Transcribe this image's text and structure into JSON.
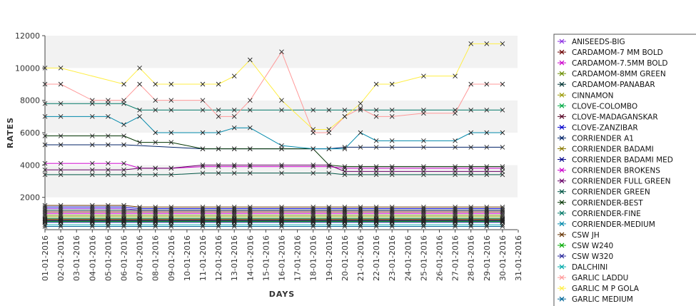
{
  "chart_data": {
    "type": "line",
    "xlabel": "DAYS",
    "ylabel": "RATES",
    "ylim": [
      0,
      12000
    ],
    "y_ticks": [
      "2000",
      "4000",
      "6000",
      "8000",
      "10000",
      "12000"
    ],
    "x": [
      "01-01-2016",
      "02-01-2016",
      "03-01-2016",
      "04-01-2016",
      "05-01-2016",
      "06-01-2016",
      "07-01-2016",
      "08-01-2016",
      "09-01-2016",
      "10-01-2016",
      "11-01-2016",
      "12-01-2016",
      "13-01-2016",
      "14-01-2016",
      "15-01-2016",
      "16-01-2016",
      "17-01-2016",
      "18-01-2016",
      "19-01-2016",
      "20-01-2016",
      "21-01-2016",
      "22-01-2016",
      "23-01-2016",
      "24-01-2016",
      "25-01-2016",
      "26-01-2016",
      "27-01-2016",
      "28-01-2016",
      "29-01-2016",
      "30-01-2016",
      "31-01-2016"
    ],
    "grid": "alternating horizontal bands",
    "legend_position": "right",
    "series": [
      {
        "name": "ANISEEDS-BIG",
        "color": "#8a2be2",
        "values": [
          1300,
          1300,
          null,
          1300,
          1300,
          1300,
          1200,
          1200,
          1200,
          null,
          1200,
          1200,
          1200,
          1200,
          null,
          1200,
          null,
          1200,
          1200,
          1200,
          1200,
          1200,
          1200,
          null,
          1200,
          null,
          1200,
          1200,
          1200,
          1200,
          null
        ]
      },
      {
        "name": "CARDAMOM-7 MM BOLD",
        "color": "#6b0000",
        "values": [
          1100,
          1100,
          null,
          1100,
          1100,
          1100,
          1100,
          1100,
          1100,
          null,
          1100,
          1100,
          1100,
          1100,
          null,
          1100,
          null,
          1100,
          1100,
          1100,
          1100,
          1100,
          1100,
          null,
          1100,
          null,
          1100,
          1100,
          1100,
          1100,
          null
        ]
      },
      {
        "name": "CARDAMOM-7.5MM BOLD",
        "color": "#cc00cc",
        "values": [
          1000,
          1000,
          null,
          1000,
          1000,
          1000,
          1000,
          1000,
          1000,
          null,
          1000,
          1000,
          1000,
          1000,
          null,
          1000,
          null,
          1000,
          1000,
          1000,
          1000,
          1000,
          1000,
          null,
          1000,
          null,
          1000,
          1000,
          1000,
          1000,
          null
        ]
      },
      {
        "name": "CARDAMOM-8MM GREEN",
        "color": "#6b8e00",
        "values": [
          900,
          900,
          null,
          900,
          900,
          900,
          900,
          900,
          900,
          null,
          900,
          900,
          900,
          900,
          null,
          900,
          null,
          900,
          900,
          900,
          900,
          900,
          900,
          null,
          900,
          null,
          900,
          900,
          900,
          900,
          null
        ]
      },
      {
        "name": "CARDAMOM-PANABAR",
        "color": "#003333",
        "values": [
          1200,
          1200,
          null,
          1200,
          1200,
          1200,
          1200,
          1200,
          1200,
          null,
          1200,
          1200,
          1200,
          1200,
          null,
          1200,
          null,
          1200,
          1200,
          1200,
          1200,
          1200,
          1200,
          null,
          1200,
          null,
          1200,
          1200,
          1200,
          1200,
          null
        ]
      },
      {
        "name": "CINNAMON",
        "color": "#999900",
        "values": [
          800,
          800,
          null,
          800,
          800,
          800,
          800,
          800,
          800,
          null,
          800,
          800,
          800,
          800,
          null,
          800,
          null,
          800,
          800,
          800,
          800,
          800,
          800,
          null,
          800,
          null,
          800,
          800,
          800,
          800,
          null
        ]
      },
      {
        "name": "CLOVE-COLOMBO",
        "color": "#00aa44",
        "values": [
          700,
          700,
          null,
          700,
          700,
          700,
          700,
          700,
          700,
          null,
          700,
          700,
          700,
          700,
          null,
          700,
          null,
          700,
          700,
          700,
          700,
          700,
          700,
          null,
          700,
          null,
          700,
          700,
          700,
          700,
          null
        ]
      },
      {
        "name": "CLOVE-MADAGANSKAR",
        "color": "#550022",
        "values": [
          650,
          650,
          null,
          650,
          650,
          650,
          650,
          650,
          650,
          null,
          650,
          650,
          650,
          650,
          null,
          650,
          null,
          650,
          650,
          650,
          650,
          650,
          650,
          null,
          650,
          null,
          650,
          650,
          650,
          650,
          null
        ]
      },
      {
        "name": "CLOVE-ZANZIBAR",
        "color": "#0000cc",
        "values": [
          1400,
          1400,
          null,
          1400,
          1400,
          1400,
          1300,
          1300,
          1300,
          null,
          1300,
          1300,
          1300,
          1300,
          null,
          1300,
          null,
          1300,
          1300,
          1300,
          1300,
          1300,
          1300,
          null,
          1300,
          null,
          1300,
          1300,
          1300,
          1300,
          null
        ]
      },
      {
        "name": "CORRIENDER A1",
        "color": "#002266",
        "values": [
          5250,
          5250,
          null,
          5250,
          5250,
          5250,
          null,
          null,
          null,
          null,
          5000,
          5000,
          5000,
          5000,
          null,
          5000,
          null,
          5000,
          5000,
          5100,
          5100,
          5100,
          5100,
          null,
          5100,
          null,
          5100,
          5100,
          5100,
          5100,
          null
        ]
      },
      {
        "name": "CORRIENDER BADAMI",
        "color": "#887700",
        "values": [
          600,
          600,
          null,
          600,
          600,
          600,
          600,
          600,
          600,
          null,
          600,
          600,
          600,
          600,
          null,
          600,
          null,
          600,
          600,
          600,
          600,
          600,
          600,
          null,
          600,
          null,
          600,
          600,
          600,
          600,
          null
        ]
      },
      {
        "name": "CORRIENDER BADAMI MED",
        "color": "#000088",
        "values": [
          550,
          550,
          null,
          550,
          550,
          550,
          550,
          550,
          550,
          null,
          550,
          550,
          550,
          550,
          null,
          550,
          null,
          550,
          550,
          550,
          550,
          550,
          550,
          null,
          550,
          null,
          550,
          550,
          550,
          550,
          null
        ]
      },
      {
        "name": "CORRIENDER BROKENS",
        "color": "#cc00cc",
        "values": [
          4100,
          4100,
          null,
          4100,
          4100,
          4100,
          3800,
          3800,
          3800,
          null,
          3900,
          3900,
          3900,
          3900,
          null,
          3900,
          null,
          3900,
          3900,
          3800,
          3800,
          3800,
          3800,
          null,
          3800,
          null,
          3800,
          3800,
          3800,
          3800,
          null
        ]
      },
      {
        "name": "CORRIENDER FULL GREEN",
        "color": "#660066",
        "values": [
          3700,
          3700,
          null,
          3700,
          3700,
          3700,
          3800,
          3800,
          3800,
          null,
          4000,
          4000,
          4000,
          4000,
          null,
          4000,
          null,
          4000,
          4000,
          3600,
          3600,
          3600,
          3600,
          null,
          3600,
          null,
          3600,
          3600,
          3600,
          3600,
          null
        ]
      },
      {
        "name": "CORRIENDER GREEN",
        "color": "#005544",
        "values": [
          3400,
          3400,
          null,
          3400,
          3400,
          3400,
          3400,
          3400,
          3400,
          null,
          3500,
          3500,
          3500,
          3500,
          null,
          3500,
          null,
          3500,
          3500,
          3400,
          3400,
          3400,
          3400,
          null,
          3400,
          null,
          3400,
          3400,
          3400,
          3400,
          null
        ]
      },
      {
        "name": "CORRIENDER-BEST",
        "color": "#003300",
        "values": [
          5800,
          5800,
          null,
          5800,
          5800,
          5800,
          5400,
          5400,
          5400,
          null,
          5000,
          5000,
          5000,
          5000,
          null,
          5000,
          null,
          5000,
          4000,
          3900,
          3900,
          3900,
          3900,
          null,
          3900,
          null,
          3900,
          3900,
          3900,
          3900,
          null
        ]
      },
      {
        "name": "CORRIENDER-FINE",
        "color": "#007766",
        "values": [
          7800,
          7800,
          null,
          7800,
          7800,
          7800,
          7400,
          7400,
          7400,
          null,
          7400,
          7400,
          7400,
          7400,
          null,
          7400,
          null,
          7400,
          7400,
          7400,
          7400,
          7400,
          7400,
          null,
          7400,
          null,
          7400,
          7400,
          7400,
          7400,
          null
        ]
      },
      {
        "name": "CORRIENDER-MEDIUM",
        "color": "#0088aa",
        "values": [
          7000,
          7000,
          null,
          7000,
          7000,
          6500,
          7000,
          6000,
          6000,
          null,
          6000,
          6000,
          6300,
          6300,
          null,
          5200,
          null,
          5000,
          5000,
          5000,
          6000,
          5500,
          5500,
          null,
          5500,
          null,
          5500,
          6000,
          6000,
          6000,
          null
        ]
      },
      {
        "name": "CSW JH",
        "color": "#663300",
        "values": [
          1500,
          1500,
          null,
          1500,
          1500,
          1500,
          1400,
          1400,
          1400,
          null,
          1400,
          1400,
          1400,
          1400,
          null,
          1400,
          null,
          1400,
          1400,
          1400,
          1400,
          1400,
          1400,
          null,
          1400,
          null,
          1400,
          1400,
          1400,
          1400,
          null
        ]
      },
      {
        "name": "CSW W240",
        "color": "#00aa00",
        "values": [
          500,
          500,
          null,
          500,
          500,
          500,
          500,
          500,
          500,
          null,
          500,
          500,
          500,
          500,
          null,
          500,
          null,
          500,
          500,
          500,
          500,
          500,
          500,
          null,
          500,
          null,
          500,
          500,
          500,
          500,
          null
        ]
      },
      {
        "name": "CSW W320",
        "color": "#222299",
        "values": [
          450,
          450,
          null,
          450,
          450,
          450,
          450,
          450,
          450,
          null,
          450,
          450,
          450,
          450,
          null,
          450,
          null,
          450,
          450,
          450,
          450,
          450,
          450,
          null,
          450,
          null,
          450,
          450,
          450,
          450,
          null
        ]
      },
      {
        "name": "DALCHINI",
        "color": "#00aaaa",
        "values": [
          300,
          300,
          null,
          300,
          300,
          300,
          300,
          300,
          300,
          null,
          300,
          300,
          300,
          300,
          null,
          300,
          null,
          300,
          300,
          300,
          300,
          300,
          300,
          null,
          300,
          null,
          300,
          300,
          300,
          300,
          null
        ]
      },
      {
        "name": "GARLIC LADDU",
        "color": "#ff9999",
        "values": [
          9000,
          9000,
          null,
          8000,
          8000,
          8000,
          9000,
          8000,
          8000,
          null,
          8000,
          7000,
          7000,
          8000,
          null,
          11000,
          null,
          6000,
          6000,
          7000,
          7500,
          7000,
          7000,
          null,
          7200,
          null,
          7200,
          9000,
          9000,
          9000,
          null
        ]
      },
      {
        "name": "GARLIC M P GOLA",
        "color": "#ffee44",
        "values": [
          10000,
          10000,
          null,
          null,
          null,
          9000,
          10000,
          9000,
          9000,
          null,
          9000,
          9000,
          9500,
          10500,
          null,
          8000,
          null,
          6200,
          6200,
          7000,
          7800,
          9000,
          9000,
          null,
          9500,
          null,
          9500,
          11500,
          11500,
          11500,
          null
        ]
      },
      {
        "name": "GARLIC MEDIUM",
        "color": "#006699",
        "values": [
          200,
          200,
          null,
          200,
          200,
          200,
          200,
          200,
          200,
          null,
          200,
          200,
          200,
          200,
          null,
          200,
          null,
          200,
          200,
          200,
          200,
          200,
          200,
          null,
          200,
          null,
          200,
          200,
          200,
          200,
          null
        ]
      }
    ]
  }
}
